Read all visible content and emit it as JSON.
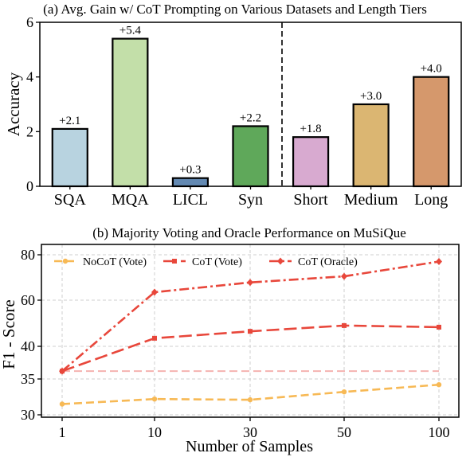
{
  "chart_data": [
    {
      "type": "bar",
      "title": "(a) Avg. Gain w/ CoT Prompting on Various Datasets and Length Tiers",
      "ylabel": "Accuracy",
      "xlabel": "",
      "ylim": [
        0,
        6
      ],
      "yticks": [
        0,
        2,
        4,
        6
      ],
      "categories": [
        "SQA",
        "MQA",
        "LICL",
        "Syn",
        "Short",
        "Medium",
        "Long"
      ],
      "values": [
        2.1,
        5.4,
        0.3,
        2.2,
        1.8,
        3.0,
        4.0
      ],
      "labels": [
        "+2.1",
        "+5.4",
        "+0.3",
        "+2.2",
        "+1.8",
        "+3.0",
        "+4.0"
      ],
      "colors": [
        "#b8d3e0",
        "#c3dfa9",
        "#6389b2",
        "#5fa85a",
        "#d8aad0",
        "#dbb672",
        "#d5986c"
      ],
      "divider_after_index": 3,
      "grid": false
    },
    {
      "type": "line",
      "title": "(b) Majority Voting and Oracle Performance on MuSiQue",
      "xlabel": "Number of Samples",
      "ylabel": "F1 - Score",
      "x": [
        "1",
        "10",
        "30",
        "50",
        "100"
      ],
      "yticks": [
        30,
        35,
        40,
        60,
        80
      ],
      "grid": true,
      "legend": "top",
      "series": [
        {
          "name": "NoCoT (Vote)",
          "color": "#f7b955",
          "values": [
            31.5,
            32.2,
            32.1,
            33.2,
            34.2
          ]
        },
        {
          "name": "CoT (Vote)",
          "color": "#e8473b",
          "values": [
            36.2,
            43.5,
            46.5,
            49.0,
            48.3
          ]
        },
        {
          "name": "CoT (Oracle)",
          "color": "#e8473b",
          "values": [
            36.2,
            63.5,
            67.8,
            70.5,
            77.0
          ]
        }
      ],
      "reference_line": {
        "y": 36.2,
        "color": "#f5b3b0"
      }
    }
  ]
}
